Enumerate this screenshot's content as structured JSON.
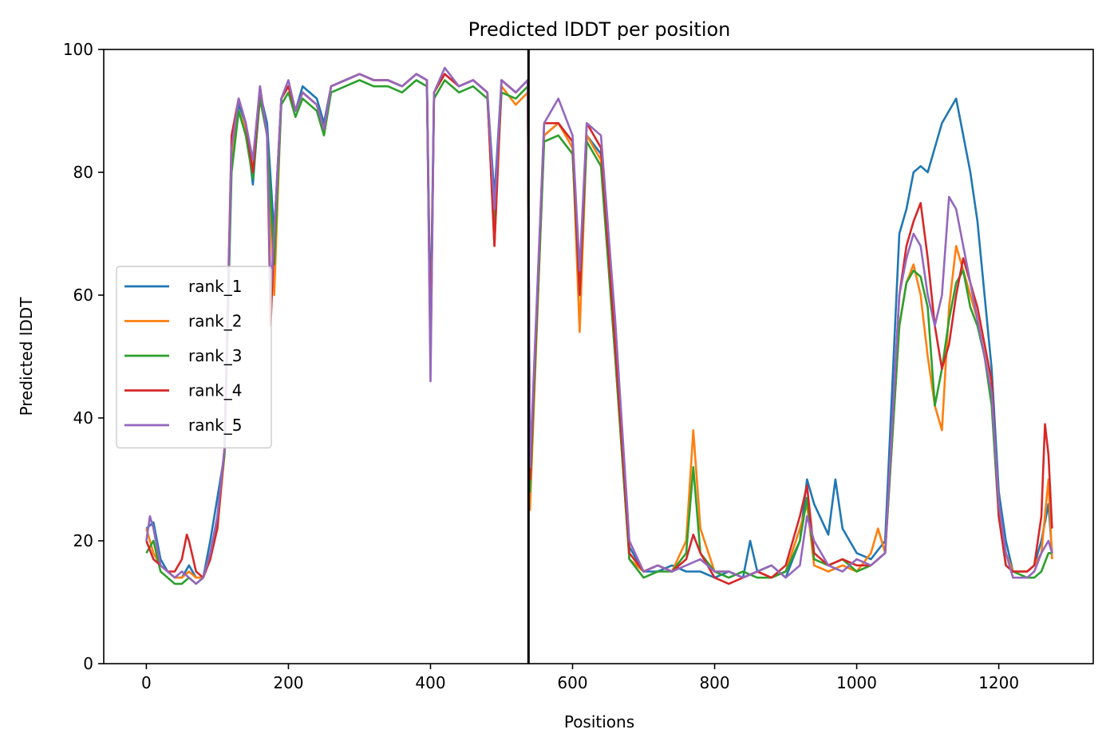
{
  "chart_data": {
    "type": "line",
    "title": "Predicted lDDT per position",
    "xlabel": "Positions",
    "ylabel": "Predicted lDDT",
    "xlim": [
      -60,
      1333
    ],
    "ylim": [
      0,
      100
    ],
    "xticks": [
      0,
      200,
      400,
      600,
      800,
      1000,
      1200
    ],
    "yticks": [
      0,
      20,
      40,
      60,
      80,
      100
    ],
    "vline_x": 538,
    "legend_placement": "center-left",
    "grid": false,
    "series": [
      {
        "name": "rank_1",
        "color": "#1f77b4",
        "x": [
          0,
          10,
          20,
          30,
          40,
          50,
          60,
          70,
          80,
          90,
          100,
          110,
          120,
          130,
          140,
          150,
          160,
          170,
          180,
          190,
          200,
          210,
          220,
          230,
          240,
          250,
          260,
          280,
          300,
          320,
          340,
          360,
          380,
          395,
          400,
          405,
          420,
          440,
          460,
          480,
          490,
          500,
          520,
          537,
          540,
          560,
          580,
          600,
          610,
          620,
          640,
          660,
          680,
          700,
          720,
          740,
          760,
          780,
          800,
          820,
          840,
          850,
          860,
          880,
          900,
          920,
          930,
          940,
          960,
          970,
          980,
          1000,
          1020,
          1040,
          1060,
          1070,
          1080,
          1090,
          1100,
          1110,
          1120,
          1130,
          1140,
          1150,
          1160,
          1170,
          1180,
          1190,
          1200,
          1210,
          1220,
          1240,
          1250,
          1260,
          1270,
          1275
        ],
        "y": [
          22,
          23,
          17,
          15,
          14,
          14,
          16,
          14,
          14,
          20,
          27,
          34,
          82,
          91,
          88,
          78,
          93,
          88,
          70,
          92,
          94,
          90,
          94,
          93,
          92,
          88,
          94,
          95,
          96,
          95,
          95,
          94,
          96,
          95,
          55,
          93,
          96,
          94,
          95,
          93,
          76,
          95,
          93,
          95,
          27,
          86,
          88,
          85,
          62,
          86,
          83,
          52,
          19,
          15,
          15,
          16,
          15,
          15,
          14,
          15,
          14,
          20,
          15,
          16,
          14,
          20,
          30,
          26,
          21,
          30,
          22,
          18,
          17,
          20,
          70,
          74,
          80,
          81,
          80,
          84,
          88,
          90,
          92,
          86,
          80,
          72,
          60,
          48,
          28,
          20,
          15,
          15,
          16,
          20,
          26,
          18
        ]
      },
      {
        "name": "rank_2",
        "color": "#ff7f0e",
        "x": [
          0,
          10,
          20,
          30,
          40,
          50,
          60,
          70,
          80,
          90,
          100,
          110,
          120,
          130,
          140,
          150,
          160,
          170,
          180,
          190,
          200,
          210,
          220,
          230,
          240,
          250,
          260,
          280,
          300,
          320,
          340,
          360,
          380,
          395,
          400,
          405,
          420,
          440,
          460,
          480,
          490,
          500,
          520,
          537,
          540,
          560,
          580,
          600,
          610,
          620,
          640,
          660,
          680,
          700,
          720,
          740,
          760,
          770,
          780,
          800,
          820,
          840,
          860,
          880,
          900,
          920,
          930,
          940,
          960,
          980,
          1000,
          1020,
          1030,
          1040,
          1060,
          1070,
          1080,
          1090,
          1100,
          1110,
          1120,
          1130,
          1140,
          1150,
          1160,
          1170,
          1180,
          1190,
          1200,
          1210,
          1220,
          1240,
          1250,
          1260,
          1270,
          1275
        ],
        "y": [
          22,
          18,
          16,
          15,
          14,
          14,
          15,
          14,
          14,
          18,
          22,
          34,
          82,
          90,
          87,
          80,
          93,
          86,
          60,
          92,
          94,
          90,
          93,
          92,
          91,
          87,
          94,
          95,
          96,
          95,
          95,
          94,
          96,
          95,
          48,
          93,
          96,
          94,
          95,
          93,
          68,
          94,
          91,
          93,
          25,
          86,
          88,
          84,
          54,
          86,
          82,
          50,
          17,
          15,
          16,
          15,
          20,
          38,
          22,
          15,
          15,
          14,
          15,
          14,
          15,
          22,
          26,
          16,
          15,
          16,
          15,
          18,
          22,
          18,
          55,
          62,
          65,
          60,
          50,
          42,
          38,
          58,
          68,
          64,
          60,
          56,
          50,
          44,
          26,
          18,
          15,
          15,
          16,
          18,
          30,
          17
        ]
      },
      {
        "name": "rank_3",
        "color": "#2ca02c",
        "x": [
          0,
          10,
          20,
          30,
          40,
          50,
          60,
          70,
          80,
          90,
          100,
          110,
          120,
          130,
          140,
          150,
          160,
          170,
          180,
          190,
          200,
          210,
          220,
          230,
          240,
          250,
          260,
          280,
          300,
          320,
          340,
          360,
          380,
          395,
          400,
          405,
          420,
          440,
          460,
          480,
          490,
          500,
          520,
          537,
          540,
          560,
          580,
          600,
          610,
          620,
          640,
          660,
          680,
          700,
          720,
          740,
          760,
          770,
          780,
          800,
          820,
          840,
          860,
          880,
          900,
          920,
          930,
          940,
          960,
          980,
          1000,
          1020,
          1040,
          1060,
          1070,
          1080,
          1090,
          1100,
          1110,
          1120,
          1130,
          1140,
          1150,
          1160,
          1170,
          1180,
          1190,
          1200,
          1210,
          1220,
          1240,
          1250,
          1260,
          1270,
          1275
        ],
        "y": [
          18,
          20,
          15,
          14,
          13,
          13,
          14,
          13,
          14,
          17,
          24,
          34,
          80,
          90,
          86,
          79,
          92,
          86,
          65,
          91,
          93,
          89,
          92,
          91,
          90,
          86,
          93,
          94,
          95,
          94,
          94,
          93,
          95,
          94,
          50,
          92,
          95,
          93,
          94,
          92,
          72,
          93,
          92,
          94,
          28,
          85,
          86,
          83,
          60,
          85,
          81,
          50,
          17,
          14,
          15,
          15,
          18,
          32,
          18,
          15,
          14,
          15,
          14,
          14,
          15,
          20,
          27,
          17,
          16,
          17,
          15,
          16,
          18,
          55,
          62,
          64,
          63,
          58,
          42,
          48,
          56,
          62,
          64,
          58,
          55,
          50,
          42,
          24,
          16,
          15,
          14,
          14,
          15,
          18,
          18
        ]
      },
      {
        "name": "rank_4",
        "color": "#d62728",
        "x": [
          0,
          10,
          20,
          30,
          40,
          50,
          57,
          60,
          70,
          80,
          90,
          100,
          110,
          120,
          130,
          140,
          150,
          160,
          170,
          175,
          180,
          190,
          200,
          210,
          220,
          230,
          240,
          250,
          260,
          280,
          300,
          320,
          340,
          360,
          380,
          395,
          400,
          405,
          420,
          440,
          460,
          480,
          490,
          500,
          520,
          537,
          540,
          560,
          580,
          600,
          610,
          620,
          640,
          660,
          680,
          700,
          720,
          740,
          760,
          770,
          780,
          800,
          820,
          840,
          860,
          880,
          900,
          920,
          930,
          940,
          960,
          980,
          1000,
          1020,
          1040,
          1060,
          1070,
          1080,
          1090,
          1100,
          1110,
          1120,
          1130,
          1140,
          1150,
          1160,
          1170,
          1180,
          1190,
          1200,
          1210,
          1220,
          1240,
          1250,
          1260,
          1265,
          1270,
          1275
        ],
        "y": [
          20,
          17,
          16,
          15,
          15,
          17,
          21,
          20,
          15,
          14,
          17,
          22,
          35,
          86,
          92,
          88,
          80,
          94,
          86,
          55,
          70,
          92,
          94,
          90,
          93,
          92,
          91,
          87,
          94,
          95,
          96,
          95,
          95,
          94,
          96,
          95,
          50,
          93,
          96,
          94,
          95,
          93,
          68,
          95,
          93,
          95,
          30,
          88,
          88,
          85,
          60,
          88,
          84,
          52,
          18,
          15,
          16,
          15,
          17,
          21,
          18,
          14,
          13,
          14,
          15,
          14,
          16,
          24,
          29,
          18,
          16,
          17,
          16,
          16,
          18,
          60,
          68,
          72,
          75,
          66,
          55,
          48,
          52,
          60,
          66,
          62,
          58,
          52,
          46,
          24,
          16,
          15,
          15,
          16,
          24,
          39,
          34,
          22
        ]
      },
      {
        "name": "rank_5",
        "color": "#9467bd",
        "x": [
          0,
          5,
          10,
          20,
          30,
          40,
          50,
          60,
          70,
          80,
          90,
          100,
          110,
          120,
          130,
          140,
          150,
          160,
          170,
          175,
          180,
          190,
          200,
          210,
          220,
          230,
          240,
          250,
          260,
          280,
          300,
          320,
          340,
          360,
          380,
          395,
          400,
          405,
          420,
          440,
          460,
          480,
          490,
          500,
          520,
          537,
          540,
          560,
          580,
          600,
          610,
          620,
          640,
          660,
          680,
          700,
          720,
          740,
          760,
          780,
          800,
          820,
          840,
          860,
          880,
          900,
          920,
          930,
          940,
          960,
          980,
          1000,
          1020,
          1040,
          1060,
          1070,
          1080,
          1090,
          1100,
          1110,
          1120,
          1130,
          1140,
          1150,
          1160,
          1170,
          1180,
          1190,
          1200,
          1210,
          1220,
          1240,
          1250,
          1260,
          1270,
          1275
        ],
        "y": [
          20,
          24,
          22,
          16,
          15,
          14,
          15,
          14,
          13,
          14,
          18,
          24,
          35,
          84,
          92,
          88,
          82,
          94,
          86,
          60,
          70,
          92,
          95,
          90,
          93,
          92,
          91,
          87,
          94,
          95,
          96,
          95,
          95,
          94,
          96,
          95,
          46,
          93,
          97,
          94,
          95,
          93,
          74,
          95,
          93,
          95,
          32,
          88,
          92,
          86,
          64,
          88,
          86,
          56,
          20,
          15,
          16,
          15,
          16,
          17,
          15,
          15,
          14,
          15,
          16,
          14,
          16,
          24,
          20,
          16,
          15,
          17,
          16,
          18,
          60,
          66,
          70,
          68,
          60,
          55,
          60,
          76,
          74,
          68,
          62,
          56,
          50,
          44,
          26,
          18,
          14,
          14,
          15,
          18,
          20,
          18
        ]
      }
    ]
  }
}
